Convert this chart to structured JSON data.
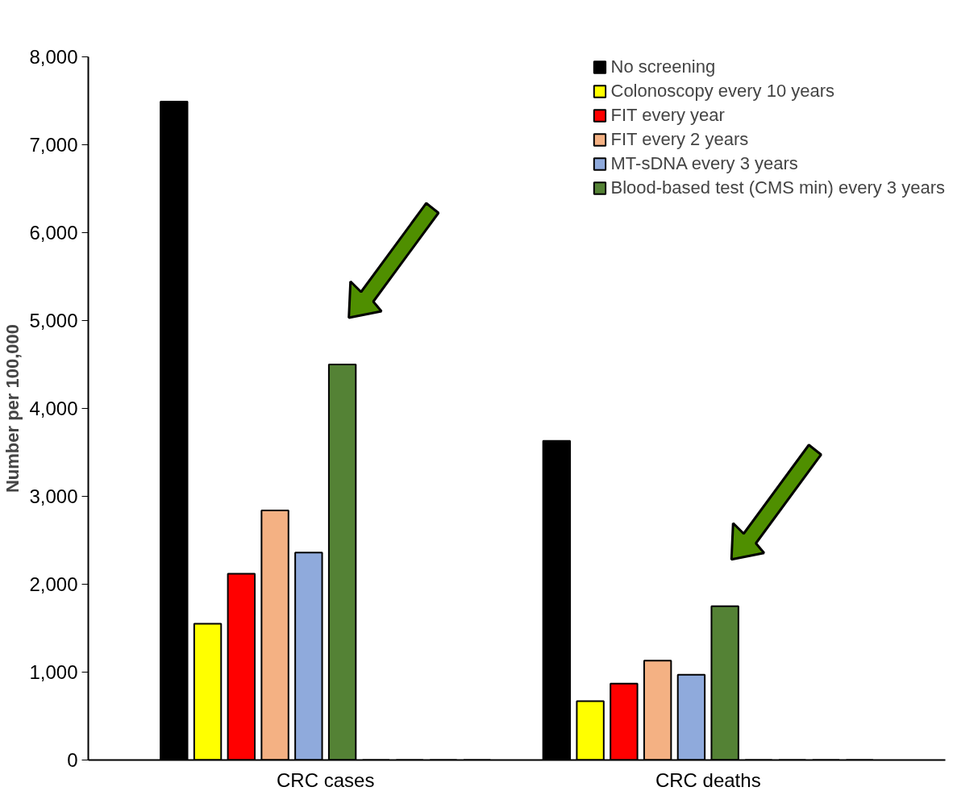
{
  "chart_data": {
    "type": "bar",
    "ylabel": "Number per 100,000",
    "categories": [
      "CRC cases",
      "CRC deaths"
    ],
    "series": [
      {
        "name": "No screening",
        "color": "#000000",
        "values": [
          7490,
          3630
        ]
      },
      {
        "name": "Colonoscopy every 10 years",
        "color": "#ffff00",
        "values": [
          1550,
          670
        ]
      },
      {
        "name": "FIT every year",
        "color": "#ff0000",
        "values": [
          2120,
          870
        ]
      },
      {
        "name": "FIT every 2 years",
        "color": "#f4b183",
        "values": [
          2840,
          1130
        ]
      },
      {
        "name": "MT-sDNA every 3 years",
        "color": "#8faadc",
        "values": [
          2360,
          970
        ]
      },
      {
        "name": "Blood-based test (CMS min) every 3 years",
        "color": "#548235",
        "values": [
          4500,
          1750
        ]
      },
      {
        "color": "#a9d18e",
        "values": [
          0,
          0
        ]
      },
      {
        "color": "#c5e0b4",
        "values": [
          0,
          0
        ]
      },
      {
        "color": "#ffe699",
        "values": [
          0,
          0
        ]
      },
      {
        "color": "#7f6000",
        "values": [
          0,
          0
        ]
      }
    ],
    "ylim": [
      0,
      8000
    ],
    "yticks": [
      0,
      {
        "value": 1000,
        "label": "1,000"
      },
      {
        "value": 2000,
        "label": "2,000"
      },
      {
        "value": 3000,
        "label": "3,000"
      },
      {
        "value": 4000,
        "label": "4,000"
      },
      {
        "value": 5000,
        "label": "5,000"
      },
      {
        "value": 6000,
        "label": "6,000"
      },
      {
        "value": 7000,
        "label": "7,000"
      },
      {
        "value": 8000,
        "label": "8,000"
      }
    ],
    "grid": false,
    "legend": "top right"
  }
}
